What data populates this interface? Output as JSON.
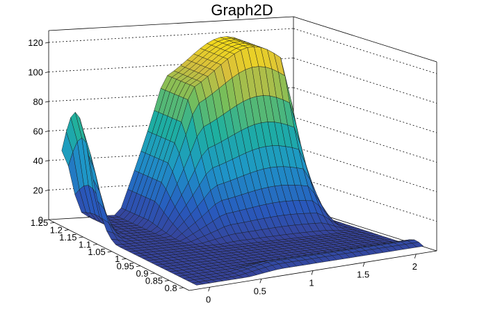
{
  "chart_data": {
    "type": "surface3d",
    "title": "Graph2D",
    "xlabel": "",
    "ylabel": "",
    "zlabel": "",
    "xlim": [
      -0.2,
      2.2
    ],
    "ylim": [
      0.78,
      1.27
    ],
    "zlim": [
      0,
      128
    ],
    "x_ticks": [
      0,
      0.5,
      1,
      1.5,
      2
    ],
    "x_tick_labels": [
      "0",
      "0.5",
      "1",
      "1.5",
      "2"
    ],
    "y_ticks": [
      0.8,
      0.85,
      0.9,
      0.95,
      1.0,
      1.05,
      1.1,
      1.15,
      1.2,
      1.25
    ],
    "y_tick_labels": [
      "0.8",
      "0.85",
      "0.9",
      "0.95",
      "1",
      "1.05",
      "1.1",
      "1.15",
      "1.2",
      "1.25"
    ],
    "z_ticks": [
      0,
      20,
      40,
      60,
      80,
      100,
      120
    ],
    "z_tick_labels": [
      "0",
      "20",
      "40",
      "60",
      "80",
      "100",
      "120"
    ],
    "grid": true,
    "colormap": "viridis-like (blue-teal-yellow)",
    "features": [
      {
        "description": "narrow peak",
        "x": -0.1,
        "y": 1.2,
        "z": 78
      },
      {
        "description": "broad plateau",
        "x_range": [
          0.7,
          1.9
        ],
        "y": 1.22,
        "z": 115
      },
      {
        "description": "low valley / floor",
        "y_range": [
          0.8,
          1.0
        ],
        "z": 2
      }
    ]
  },
  "colors": {
    "frame": "#000000",
    "grid": "#000000",
    "low": "#3550a8",
    "mid": "#21a8b0",
    "high": "#f8e020"
  }
}
